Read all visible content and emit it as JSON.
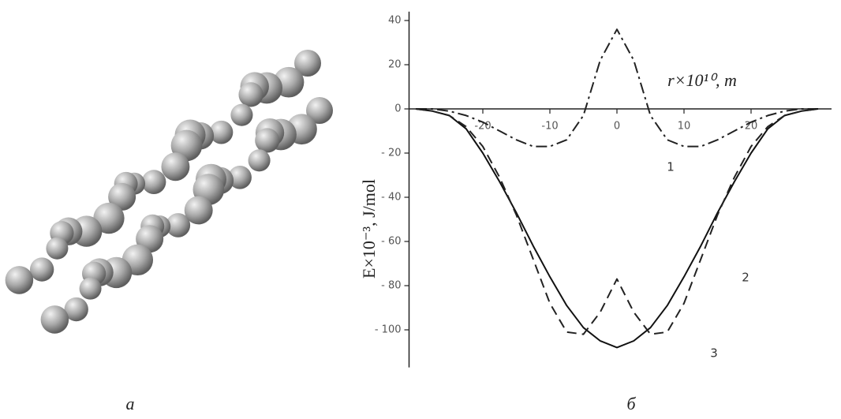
{
  "panel_labels": [
    "a",
    "б"
  ],
  "chart_data": {
    "type": "line",
    "x_label": "r×10¹⁰, m",
    "y_label": "E×10⁻³, J/mol",
    "x": [
      -30,
      -27.5,
      -25,
      -22.5,
      -20,
      -17.5,
      -15,
      -12.5,
      -10,
      -7.5,
      -5,
      -2.5,
      0,
      2.5,
      5,
      7.5,
      10,
      12.5,
      15,
      17.5,
      20,
      22.5,
      25,
      27.5,
      30
    ],
    "series": [
      {
        "name": "1",
        "color": "#222222",
        "style": "dash-dot",
        "values": [
          0,
          0,
          -1,
          -3,
          -6,
          -10,
          -14,
          -17,
          -17,
          -14,
          -3,
          22,
          36,
          22,
          -3,
          -14,
          -17,
          -17,
          -14,
          -10,
          -6,
          -3,
          -1,
          0,
          0
        ]
      },
      {
        "name": "2",
        "color": "#111111",
        "style": "solid",
        "values": [
          0,
          -1,
          -3,
          -9,
          -20,
          -33,
          -47,
          -62,
          -76,
          -89,
          -99,
          -105,
          -108,
          -105,
          -99,
          -89,
          -76,
          -62,
          -47,
          -33,
          -20,
          -9,
          -3,
          -1,
          0
        ]
      },
      {
        "name": "3",
        "color": "#222222",
        "style": "dash",
        "values": [
          0,
          -1,
          -3,
          -8,
          -17,
          -31,
          -48,
          -68,
          -88,
          -101,
          -102,
          -92,
          -77,
          -92,
          -102,
          -101,
          -88,
          -68,
          -48,
          -31,
          -17,
          -8,
          -3,
          -1,
          0
        ]
      }
    ],
    "xlim": [
      -31,
      32
    ],
    "ylim": [
      -117,
      44
    ],
    "xticks": [
      -20,
      -10,
      0,
      10,
      20
    ],
    "yticks": [
      40,
      20,
      0,
      {
        "value": -20,
        "label": "- 20"
      },
      {
        "value": -40,
        "label": "- 40"
      },
      {
        "value": -60,
        "label": "- 60"
      },
      {
        "value": -80,
        "label": "- 80"
      },
      {
        "value": -100,
        "label": "- 100"
      }
    ]
  }
}
